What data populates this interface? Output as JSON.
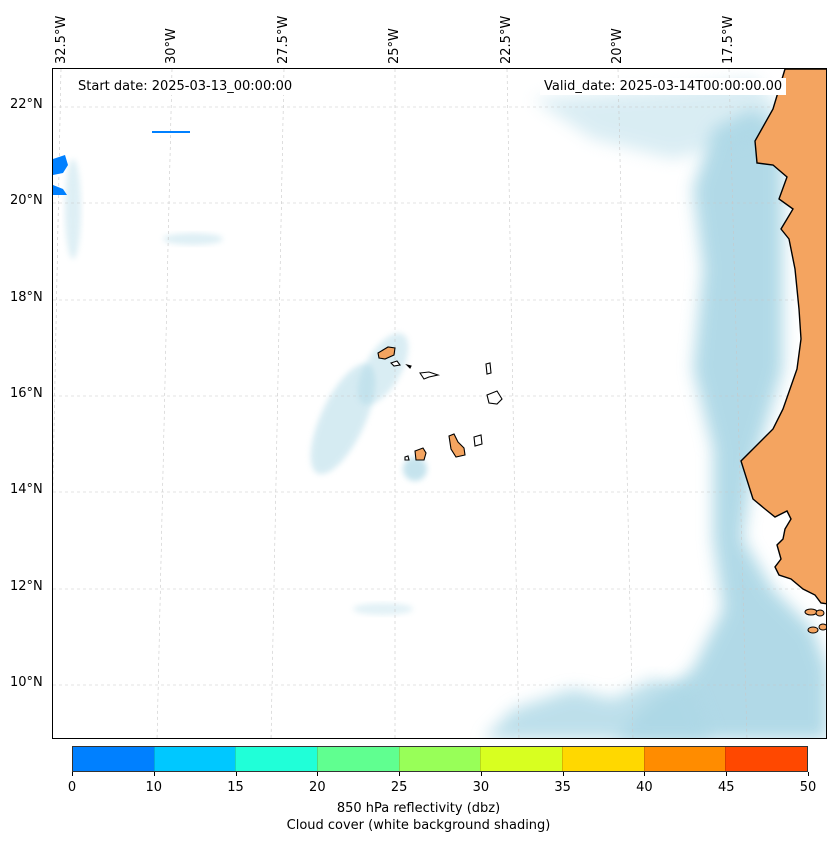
{
  "map": {
    "start_date": "Start date: 2025-03-13_00:00:00",
    "valid_date": "Valid_date: 2025-03-14T00:00:00.00",
    "lon_labels": [
      "32.5°W",
      "30°W",
      "27.5°W",
      "25°W",
      "22.5°W",
      "20°W",
      "17.5°W"
    ],
    "lat_labels": [
      "22°N",
      "20°N",
      "18°N",
      "16°N",
      "14°N",
      "12°N",
      "10°N"
    ],
    "land_color": "#f4a460",
    "cloud_color": "#add8e6",
    "reflectivity_patch_color": "#0080ff"
  },
  "colorbar": {
    "ticks": [
      "0",
      "10",
      "15",
      "20",
      "25",
      "30",
      "35",
      "40",
      "45",
      "50"
    ],
    "colors": [
      "#0080ff",
      "#00c8ff",
      "#20ffd8",
      "#60ff90",
      "#98ff58",
      "#d8ff20",
      "#ffd800",
      "#ff8c00",
      "#ff4800"
    ],
    "label": "850 hPa reflectivity (dbz)",
    "sublabel": "Cloud cover (white background shading)"
  }
}
